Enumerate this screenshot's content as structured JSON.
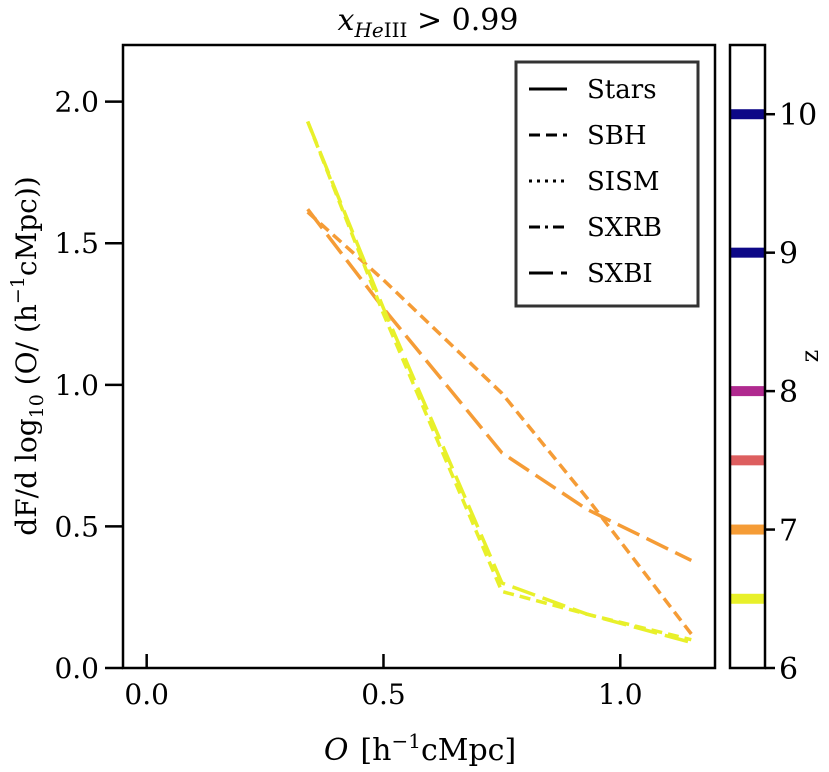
{
  "chart_data": {
    "type": "line",
    "title": "x_HeIII > 0.99",
    "title_parts": {
      "var": "x",
      "sub": "He",
      "sub2": "III",
      "rest": " > 0.99"
    },
    "xlabel": "O  [h⁻¹cMpc]",
    "xlabel_parts": {
      "var": "O",
      "unit": "[h",
      "sup": "−1",
      "unit2": "cMpc]"
    },
    "ylabel": "dF/dlog10 (O/(h⁻¹cMpc))",
    "ylabel_parts": {
      "pre": "dF/d log",
      "sub": "10",
      "mid": " (O/ (h",
      "sup": "−1",
      "post": "cMpc))"
    },
    "xlim": [
      -0.05,
      1.2
    ],
    "ylim": [
      0.0,
      2.2
    ],
    "xticks": [
      0.0,
      0.5,
      1.0
    ],
    "xtick_labels": [
      "0.0",
      "0.5",
      "1.0"
    ],
    "yticks": [
      0.0,
      0.5,
      1.0,
      1.5,
      2.0
    ],
    "ytick_labels": [
      "0.0",
      "0.5",
      "1.0",
      "1.5",
      "2.0"
    ],
    "legend": {
      "position": "top-right",
      "entries": [
        {
          "label": "Stars",
          "style": "solid"
        },
        {
          "label": "SBH",
          "style": "dashed"
        },
        {
          "label": "SISM",
          "style": "dotted"
        },
        {
          "label": "SXRB",
          "style": "dashdot"
        },
        {
          "label": "SXBI",
          "style": "longdash"
        }
      ]
    },
    "series": [
      {
        "name": "SBH z=7",
        "style": "dashed",
        "color": "#f59c36",
        "x": [
          0.34,
          0.5,
          0.75,
          0.93,
          1.15
        ],
        "y": [
          1.61,
          1.37,
          0.97,
          0.6,
          0.12
        ]
      },
      {
        "name": "SXBI z=7",
        "style": "longdash",
        "color": "#f59c36",
        "x": [
          0.34,
          0.5,
          0.75,
          0.93,
          1.15
        ],
        "y": [
          1.62,
          1.27,
          0.76,
          0.56,
          0.38
        ]
      },
      {
        "name": "SBH z=6.5",
        "style": "dashed",
        "color": "#e8f02a",
        "x": [
          0.34,
          0.5,
          0.75,
          0.93,
          1.15
        ],
        "y": [
          1.93,
          1.25,
          0.27,
          0.19,
          0.1
        ]
      },
      {
        "name": "SXBI z=6.5",
        "style": "longdash",
        "color": "#e8f02a",
        "x": [
          0.34,
          0.5,
          0.75,
          0.93,
          1.15
        ],
        "y": [
          1.93,
          1.27,
          0.3,
          0.19,
          0.09
        ]
      }
    ],
    "colorbar": {
      "label": "z",
      "range": [
        6,
        10.5
      ],
      "ticks": [
        6,
        7,
        8,
        9,
        10
      ],
      "tick_labels": [
        "6",
        "7",
        "8",
        "9",
        "10"
      ],
      "markers": [
        {
          "z": 6.5,
          "color": "#e8f02a"
        },
        {
          "z": 7.0,
          "color": "#f59c36"
        },
        {
          "z": 7.5,
          "color": "#dd5e5f"
        },
        {
          "z": 8.0,
          "color": "#b02a8f"
        },
        {
          "z": 9.0,
          "color": "#0d0887"
        },
        {
          "z": 10.0,
          "color": "#0d0887"
        }
      ]
    }
  }
}
